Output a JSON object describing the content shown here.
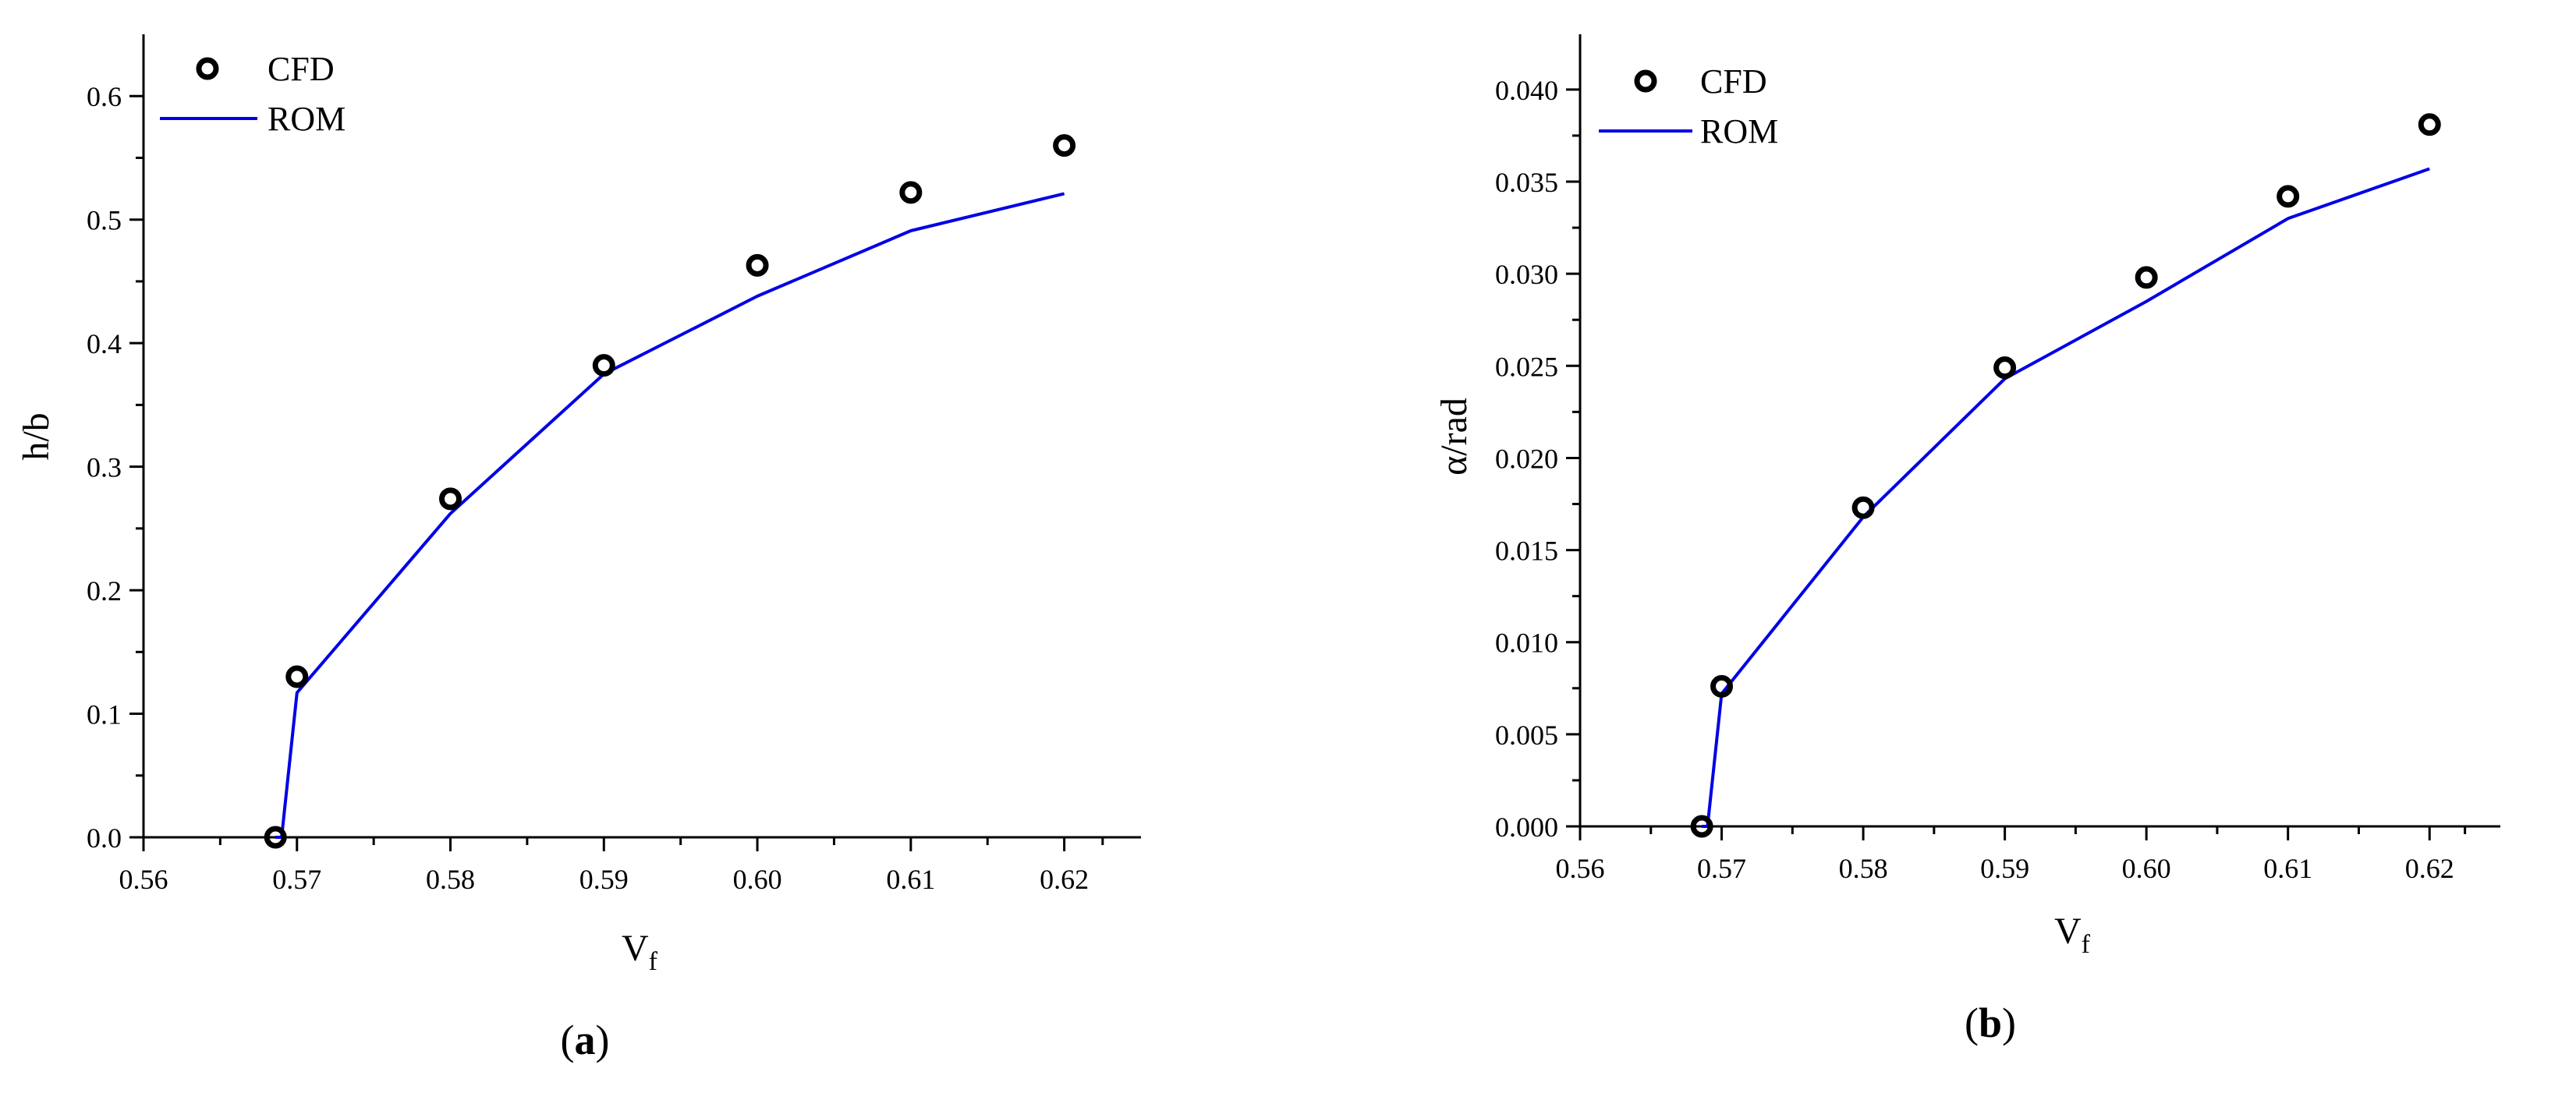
{
  "colors": {
    "rom_line": "#0000e6",
    "cfd_marker": "#000000",
    "axis": "#000000"
  },
  "chart_data": [
    {
      "type": "line",
      "panel_label": "a",
      "xlabel": "V",
      "xlabel_sub": "f",
      "ylabel": "h/b",
      "xlim": [
        0.56,
        0.625
      ],
      "ylim": [
        0,
        0.65
      ],
      "xticks": [
        {
          "v": 0.56,
          "label": "0.56"
        },
        {
          "v": 0.57,
          "label": "0.57"
        },
        {
          "v": 0.58,
          "label": "0.58"
        },
        {
          "v": 0.59,
          "label": "0.59"
        },
        {
          "v": 0.6,
          "label": "0.60"
        },
        {
          "v": 0.61,
          "label": "0.61"
        },
        {
          "v": 0.62,
          "label": "0.62"
        }
      ],
      "yticks": [
        {
          "v": 0.0,
          "label": "0.0"
        },
        {
          "v": 0.1,
          "label": "0.1"
        },
        {
          "v": 0.2,
          "label": "0.2"
        },
        {
          "v": 0.3,
          "label": "0.3"
        },
        {
          "v": 0.4,
          "label": "0.4"
        },
        {
          "v": 0.5,
          "label": "0.5"
        },
        {
          "v": 0.6,
          "label": "0.6"
        }
      ],
      "legend_position": "top-left",
      "series": [
        {
          "name": "CFD",
          "kind": "scatter",
          "x": [
            0.5686,
            0.57,
            0.58,
            0.59,
            0.6,
            0.61,
            0.62
          ],
          "y": [
            0.0,
            0.13,
            0.274,
            0.382,
            0.463,
            0.522,
            0.56
          ]
        },
        {
          "name": "ROM",
          "kind": "line",
          "x": [
            0.5686,
            0.569,
            0.57,
            0.58,
            0.59,
            0.6,
            0.61,
            0.62
          ],
          "y": [
            0.0,
            0.0,
            0.117,
            0.262,
            0.375,
            0.438,
            0.491,
            0.521
          ]
        }
      ]
    },
    {
      "type": "line",
      "panel_label": "b",
      "xlabel": "V",
      "xlabel_sub": "f",
      "ylabel": "α/rad",
      "xlim": [
        0.56,
        0.625
      ],
      "ylim": [
        0,
        0.043
      ],
      "xticks": [
        {
          "v": 0.56,
          "label": "0.56"
        },
        {
          "v": 0.57,
          "label": "0.57"
        },
        {
          "v": 0.58,
          "label": "0.58"
        },
        {
          "v": 0.59,
          "label": "0.59"
        },
        {
          "v": 0.6,
          "label": "0.60"
        },
        {
          "v": 0.61,
          "label": "0.61"
        },
        {
          "v": 0.62,
          "label": "0.62"
        }
      ],
      "yticks": [
        {
          "v": 0.0,
          "label": "0.000"
        },
        {
          "v": 0.005,
          "label": "0.005"
        },
        {
          "v": 0.01,
          "label": "0.010"
        },
        {
          "v": 0.015,
          "label": "0.015"
        },
        {
          "v": 0.02,
          "label": "0.020"
        },
        {
          "v": 0.025,
          "label": "0.025"
        },
        {
          "v": 0.03,
          "label": "0.030"
        },
        {
          "v": 0.035,
          "label": "0.035"
        },
        {
          "v": 0.04,
          "label": "0.040"
        }
      ],
      "legend_position": "top-left",
      "series": [
        {
          "name": "CFD",
          "kind": "scatter",
          "x": [
            0.5686,
            0.57,
            0.58,
            0.59,
            0.6,
            0.61,
            0.62
          ],
          "y": [
            0.0,
            0.0076,
            0.0173,
            0.0249,
            0.0298,
            0.0342,
            0.0381
          ]
        },
        {
          "name": "ROM",
          "kind": "line",
          "x": [
            0.5686,
            0.569,
            0.57,
            0.58,
            0.59,
            0.6,
            0.61,
            0.62
          ],
          "y": [
            0.0,
            0.0,
            0.0072,
            0.0168,
            0.0243,
            0.0285,
            0.033,
            0.0357
          ]
        }
      ]
    }
  ]
}
